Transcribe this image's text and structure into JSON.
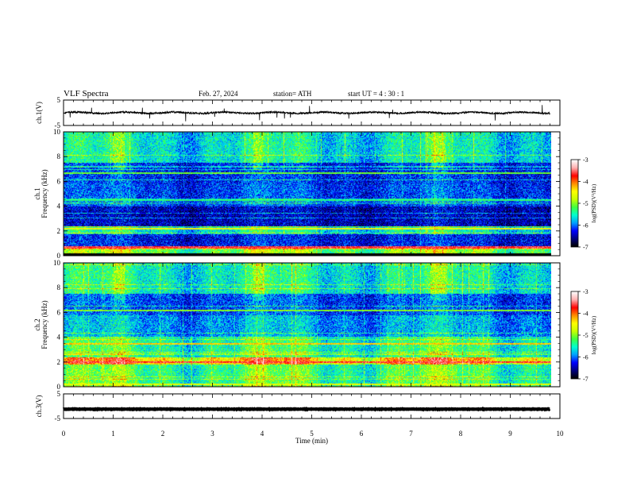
{
  "header": {
    "title": "VLF  Spectra",
    "date": "Feb. 27, 2024",
    "station": "station= ATH",
    "start": "start  UT  =   4  : 30 : 1"
  },
  "colors": {
    "colormap": [
      "#000000",
      "#00007f",
      "#0000ff",
      "#00a0ff",
      "#00ffd0",
      "#40ff40",
      "#c8ff00",
      "#ffff00",
      "#ff8c00",
      "#ff0000",
      "#ffb0b0",
      "#ffffff"
    ],
    "frame": "#000000"
  },
  "chart_data": [
    {
      "type": "line",
      "name": "ch1-waveform",
      "ylabel": "ch.1(V)",
      "ylim": [
        -5,
        5
      ],
      "yticks": [
        "5",
        "-5"
      ],
      "xlim": [
        0,
        10
      ],
      "baseline": 0,
      "noise": 0.35
    },
    {
      "type": "heatmap",
      "name": "ch1-spectrogram",
      "ylabel_top": "ch.1",
      "ylabel": "Frequency  (kHz)",
      "ylim": [
        0,
        10
      ],
      "yticks": [
        "10",
        "8",
        "6",
        "4",
        "2",
        "0"
      ],
      "xlim": [
        0,
        9.8
      ],
      "colorbar": {
        "label": "log(PSD)(V²/Hz)",
        "range": [
          -7,
          -3
        ],
        "ticks": [
          "-3",
          "-4",
          "-5",
          "-6",
          "-7"
        ]
      }
    },
    {
      "type": "heatmap",
      "name": "ch2-spectrogram",
      "ylabel_top": "ch.2",
      "ylabel": "Frequency  (kHz)",
      "ylim": [
        0,
        10
      ],
      "yticks": [
        "10",
        "8",
        "6",
        "4",
        "2",
        "0"
      ],
      "xlim": [
        0,
        9.8
      ],
      "colorbar": {
        "label": "log(PSD)(V²/Hz)",
        "range": [
          -7,
          -3
        ],
        "ticks": [
          "-3",
          "-4",
          "-5",
          "-6",
          "-7"
        ]
      }
    },
    {
      "type": "line",
      "name": "ch3-waveform",
      "ylabel": "ch.3(V)",
      "ylim": [
        -5,
        5
      ],
      "yticks": [
        "5",
        "-5"
      ],
      "xlim": [
        0,
        10
      ],
      "baseline": -1.2,
      "noise": 0.05
    }
  ],
  "xaxis": {
    "label": "Time  (min)",
    "ticks": [
      "0",
      "1",
      "2",
      "3",
      "4",
      "5",
      "6",
      "7",
      "8",
      "9",
      "10"
    ]
  }
}
